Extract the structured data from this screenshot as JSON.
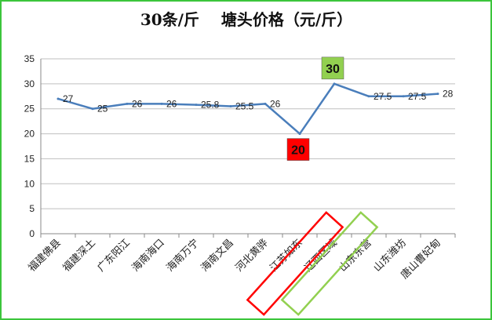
{
  "chart_data": {
    "type": "line",
    "title": "30条/斤    塘头价格（元/斤）",
    "categories": [
      "福建佛县",
      "福建深土",
      "广东阳江",
      "海南海口",
      "海南万宁",
      "海南文昌",
      "河北黄骅",
      "江苏如东",
      "辽西区域",
      "山东东营",
      "山东潍坊",
      "唐山曹妃甸"
    ],
    "series": [
      {
        "values": [
          27,
          25,
          26,
          26,
          25.8,
          25.5,
          26,
          20,
          30,
          27.5,
          27.5,
          28
        ],
        "labels": [
          "27",
          "25",
          "26",
          "26",
          "25.8",
          "25.5",
          "26",
          "",
          "",
          "27.5",
          "27.5",
          "28"
        ]
      }
    ],
    "ylim": [
      0,
      35
    ],
    "yticks": [
      "0",
      "5",
      "10",
      "15",
      "20",
      "25",
      "30",
      "35"
    ],
    "grid": true,
    "legend": "none",
    "callouts": [
      {
        "category_index": 8,
        "value": 30,
        "text": "30",
        "color": "#92d050",
        "position": "above"
      },
      {
        "category_index": 7,
        "value": 20,
        "text": "20",
        "color": "#ff0000",
        "position": "below"
      }
    ],
    "highlight_boxes": [
      {
        "category_index": 7,
        "color": "#ff0000"
      },
      {
        "category_index": 8,
        "color": "#92d050"
      }
    ],
    "colors": {
      "line": "#4a7ebb",
      "grid": "#bfbfbf",
      "frame": "#3cc53c"
    }
  }
}
